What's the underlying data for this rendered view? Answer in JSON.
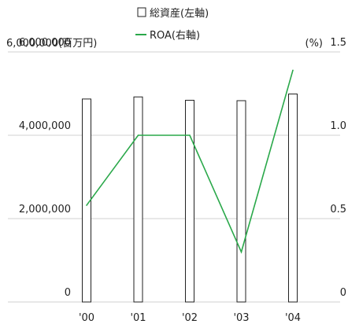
{
  "chart_data": {
    "type": "bar",
    "categories": [
      "'00",
      "'01",
      "'02",
      "'03",
      "'04"
    ],
    "series": [
      {
        "name": "総資産(左軸)",
        "type": "bar",
        "axis": "left",
        "values": [
          4870000,
          4920000,
          4840000,
          4830000,
          4990000
        ]
      },
      {
        "name": "ROA(右軸)",
        "type": "line",
        "axis": "right",
        "values": [
          0.58,
          1.0,
          1.0,
          0.3,
          1.39
        ]
      }
    ],
    "left_axis": {
      "unit": "(百万円)",
      "ylim": [
        0,
        6000000
      ],
      "tick_labels": [
        "0",
        "2,000,000",
        "4,000,000",
        "6,000,000"
      ]
    },
    "right_axis": {
      "unit": "(%)",
      "ylim": [
        0,
        1.5
      ],
      "tick_labels": [
        "0",
        "0.5",
        "1.0",
        "1.5"
      ]
    },
    "grid": true,
    "legend_position": "top-center",
    "colors": {
      "bar_fill": "#ffffff",
      "bar_stroke": "#222222",
      "line": "#2aa84a",
      "grid": "#d0d0d0"
    }
  }
}
